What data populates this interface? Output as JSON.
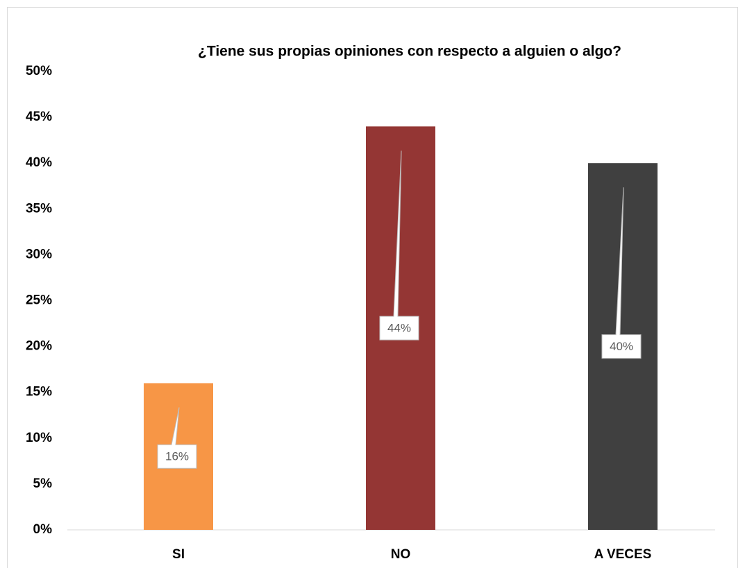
{
  "chart_data": {
    "type": "bar",
    "title": "¿Tiene sus propias opiniones con respecto a alguien o algo?",
    "categories": [
      "SI",
      "NO",
      "A VECES"
    ],
    "values": [
      16,
      44,
      40
    ],
    "value_labels": [
      "16%",
      "44%",
      "40%"
    ],
    "colors": [
      "#f79646",
      "#943634",
      "#404040"
    ],
    "ylim": [
      0,
      50
    ],
    "yticks": [
      {
        "value": 0,
        "label": "0%"
      },
      {
        "value": 5,
        "label": "5%"
      },
      {
        "value": 10,
        "label": "10%"
      },
      {
        "value": 15,
        "label": "15%"
      },
      {
        "value": 20,
        "label": "20%"
      },
      {
        "value": 25,
        "label": "25%"
      },
      {
        "value": 30,
        "label": "30%"
      },
      {
        "value": 35,
        "label": "35%"
      },
      {
        "value": 40,
        "label": "40%"
      },
      {
        "value": 45,
        "label": "45%"
      },
      {
        "value": 50,
        "label": "50%"
      }
    ],
    "grid": false
  }
}
